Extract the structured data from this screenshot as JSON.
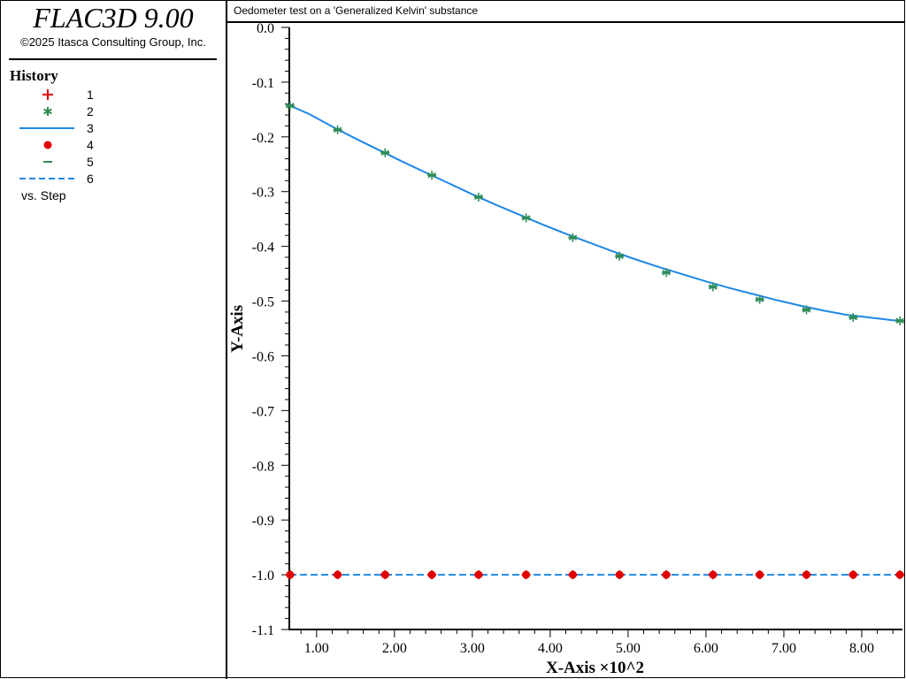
{
  "app": {
    "title": "FLAC3D 9.00",
    "copyright": "©2025 Itasca Consulting Group, Inc."
  },
  "legend": {
    "heading": "History",
    "items": [
      {
        "label": "1",
        "symbol": "plus-marker",
        "color": "#e00000"
      },
      {
        "label": "2",
        "symbol": "asterisk-marker",
        "color": "#2e8b57"
      },
      {
        "label": "3",
        "symbol": "solid-line",
        "color": "#1e88e5"
      },
      {
        "label": "4",
        "symbol": "dot-marker",
        "color": "#e00000"
      },
      {
        "label": "5",
        "symbol": "dash-marker",
        "color": "#2e8b57"
      },
      {
        "label": "6",
        "symbol": "dashed-line",
        "color": "#1e88e5"
      }
    ],
    "vs_label": "vs. Step"
  },
  "plot": {
    "title": "Oedometer test on a 'Generalized Kelvin' substance"
  },
  "chart_data": {
    "type": "line",
    "xlabel": "X-Axis ×10^2",
    "ylabel": "Y-Axis",
    "xlim": [
      0.65,
      8.5
    ],
    "ylim": [
      -1.1,
      0.0
    ],
    "x_ticks": [
      "1.00",
      "2.00",
      "3.00",
      "4.00",
      "5.00",
      "6.00",
      "7.00",
      "8.00"
    ],
    "y_ticks": [
      "0.0",
      "-0.1",
      "-0.2",
      "-0.3",
      "-0.4",
      "-0.5",
      "-0.6",
      "-0.7",
      "-0.8",
      "-0.9",
      "-1.0",
      "-1.1"
    ],
    "grid": false,
    "legend_placement": "left panel",
    "curve_x": [
      0.66,
      0.9,
      1.2,
      1.5,
      1.8,
      2.1,
      2.4,
      2.7,
      3.0,
      3.3,
      3.6,
      3.9,
      4.2,
      4.5,
      4.8,
      5.1,
      5.4,
      5.7,
      6.0,
      6.3,
      6.6,
      6.9,
      7.2,
      7.5,
      7.8,
      8.1,
      8.4,
      8.5
    ],
    "curve_y": [
      -0.143,
      -0.158,
      -0.181,
      -0.203,
      -0.224,
      -0.245,
      -0.265,
      -0.285,
      -0.305,
      -0.324,
      -0.342,
      -0.36,
      -0.377,
      -0.393,
      -0.409,
      -0.424,
      -0.438,
      -0.451,
      -0.464,
      -0.476,
      -0.487,
      -0.498,
      -0.508,
      -0.517,
      -0.525,
      -0.53,
      -0.535,
      -0.536
    ],
    "marker_x": [
      0.66,
      1.27,
      1.88,
      2.48,
      3.08,
      3.69,
      4.29,
      4.89,
      5.49,
      6.09,
      6.69,
      7.29,
      7.89,
      8.49
    ],
    "marker_y": [
      -0.143,
      -0.187,
      -0.229,
      -0.27,
      -0.31,
      -0.348,
      -0.384,
      -0.418,
      -0.448,
      -0.474,
      -0.497,
      -0.516,
      -0.53,
      -0.536
    ],
    "baseline_y": -1.0,
    "series": [
      {
        "name": "1",
        "style": "plus",
        "color": "#e00000",
        "on": "baseline"
      },
      {
        "name": "2",
        "style": "asterisk",
        "color": "#2e8b57",
        "on": "curve"
      },
      {
        "name": "3",
        "style": "solid",
        "color": "#1e88e5",
        "on": "curve"
      },
      {
        "name": "4",
        "style": "dot",
        "color": "#e00000",
        "on": "baseline"
      },
      {
        "name": "5",
        "style": "dash",
        "color": "#2e8b57",
        "on": "curve"
      },
      {
        "name": "6",
        "style": "dashed",
        "color": "#1e88e5",
        "on": "baseline"
      }
    ]
  }
}
